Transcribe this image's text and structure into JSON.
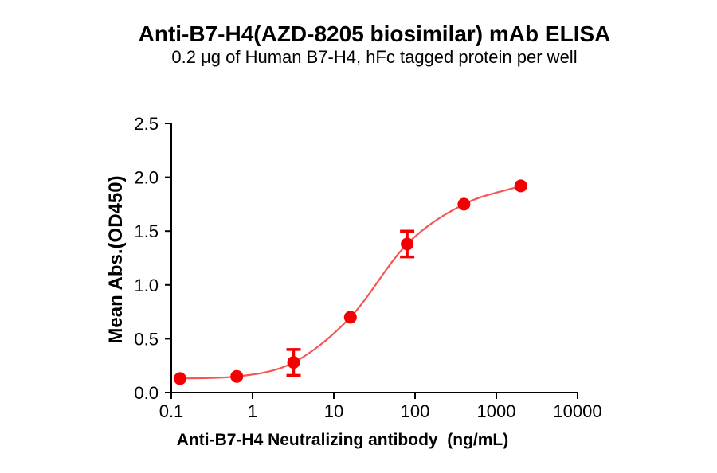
{
  "chart_data": {
    "type": "scatter",
    "title": "Anti-B7-H4(AZD-8205 biosimilar) mAb ELISA",
    "subtitle": "0.2 μg of Human B7-H4, hFc tagged protein per well",
    "xlabel": "Anti-B7-H4 Neutralizing antibody  (ng/mL)",
    "ylabel": "Mean Abs.(OD450)",
    "x_scale": "log10",
    "xlim": [
      0.1,
      10000
    ],
    "ylim": [
      0.0,
      2.5
    ],
    "x_ticks": [
      0.1,
      1,
      10,
      100,
      1000,
      10000
    ],
    "x_tick_labels": [
      "0.1",
      "1",
      "10",
      "100",
      "1000",
      "10000"
    ],
    "y_ticks": [
      0.0,
      0.5,
      1.0,
      1.5,
      2.0,
      2.5
    ],
    "y_tick_labels": [
      "0.0",
      "0.5",
      "1.0",
      "1.5",
      "2.0",
      "2.5"
    ],
    "grid": false,
    "legend": "none",
    "axis_color": "#000000",
    "series": [
      {
        "name": "Anti-B7-H4 neutralizing antibody",
        "marker_color": "#F40000",
        "curve_color": "#F95353",
        "fit": "sigmoidal dose-response curve through points",
        "points": [
          {
            "x": 0.128,
            "y": 0.13,
            "err": 0
          },
          {
            "x": 0.64,
            "y": 0.15,
            "err": 0
          },
          {
            "x": 3.2,
            "y": 0.28,
            "err": 0.12
          },
          {
            "x": 16,
            "y": 0.7,
            "err": 0
          },
          {
            "x": 80,
            "y": 1.38,
            "err": 0.12
          },
          {
            "x": 400,
            "y": 1.75,
            "err": 0
          },
          {
            "x": 2000,
            "y": 1.92,
            "err": 0
          }
        ]
      }
    ]
  }
}
